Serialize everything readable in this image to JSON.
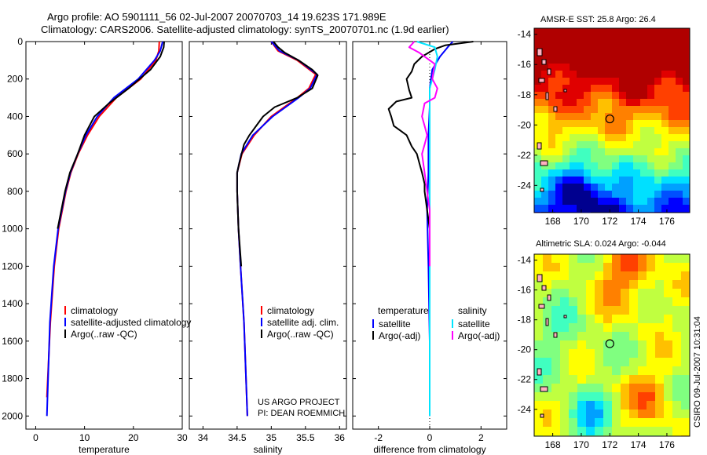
{
  "header": {
    "line1": "Argo profile: AO 5901111_56 02-Jul-2007 20070703_14 19.623S 171.989E",
    "line2": "Climatology: CARS2006. Satellite-adjusted climatology: synTS_20070701.nc (1.9d earlier)"
  },
  "credit": {
    "line1": "US ARGO PROJECT",
    "line2": "PI: DEAN ROEMMICH"
  },
  "stamp": "CSIRO 09-Jul-2007 10:31:04",
  "depth_ticks": [
    "0",
    "200",
    "400",
    "600",
    "800",
    "1000",
    "1200",
    "1400",
    "1600",
    "1800",
    "2000"
  ],
  "colors": {
    "climatology": "#ff0000",
    "satellite": "#0000ff",
    "argo": "#000000",
    "sal_satellite": "#00e5ff",
    "sal_argo": "#ff00ff",
    "argo_dot": "#000000"
  },
  "chart_data": [
    {
      "type": "line",
      "xlabel": "temperature",
      "xlim": [
        -2,
        30
      ],
      "ylim": [
        2070,
        0
      ],
      "xticks": [
        "0",
        "10",
        "20",
        "30"
      ],
      "legend": {
        "position": "lower-middle",
        "entries": [
          "climatology",
          "satellite-adjusted climatology",
          "Argo(..raw -QC)"
        ]
      },
      "series": [
        {
          "name": "climatology",
          "color": "#ff0000",
          "depth": [
            0,
            50,
            100,
            200,
            300,
            400,
            500,
            600,
            700,
            800,
            1000,
            1200,
            1500,
            1900
          ],
          "values": [
            25.3,
            25.2,
            24.6,
            21.5,
            16.5,
            13.0,
            10.6,
            8.7,
            7.2,
            6.2,
            4.7,
            3.8,
            3.0,
            2.3
          ]
        },
        {
          "name": "satellite-adjusted climatology",
          "color": "#0000ff",
          "depth": [
            0,
            50,
            100,
            200,
            300,
            400,
            500,
            600,
            700,
            800,
            1000,
            1200,
            1500,
            2000
          ],
          "values": [
            26.0,
            25.5,
            24.3,
            21.0,
            16.0,
            12.6,
            10.3,
            8.6,
            7.1,
            6.1,
            4.6,
            3.7,
            2.9,
            2.3
          ]
        },
        {
          "name": "Argo(..raw -QC)",
          "color": "#000000",
          "depth": [
            0,
            30,
            80,
            150,
            250,
            330,
            400,
            500,
            600,
            700,
            800,
            1000
          ],
          "values": [
            26.3,
            26.2,
            25.5,
            23.5,
            19.0,
            15.0,
            12.0,
            10.0,
            8.6,
            7.0,
            6.0,
            4.5
          ]
        }
      ]
    },
    {
      "type": "line",
      "xlabel": "salinity",
      "xlim": [
        33.8,
        36.1
      ],
      "ylim": [
        2070,
        0
      ],
      "xticks": [
        "34",
        "34.5",
        "35",
        "35.5",
        "36"
      ],
      "legend": {
        "position": "lower-middle",
        "entries": [
          "climatology",
          "satellite adj. clim.",
          "Argo(..raw -QC)"
        ]
      },
      "series": [
        {
          "name": "climatology",
          "color": "#ff0000",
          "depth": [
            0,
            50,
            100,
            175,
            250,
            300,
            400,
            500,
            600,
            700,
            800,
            1000,
            1200,
            1500,
            2000
          ],
          "values": [
            35.0,
            35.1,
            35.38,
            35.65,
            35.55,
            35.38,
            35.0,
            34.75,
            34.57,
            34.5,
            34.5,
            34.52,
            34.55,
            34.6,
            34.65
          ]
        },
        {
          "name": "satellite adj. clim.",
          "color": "#0000ff",
          "depth": [
            0,
            50,
            100,
            175,
            250,
            300,
            400,
            500,
            600,
            700,
            800,
            1000,
            1200,
            1500,
            2000
          ],
          "values": [
            35.0,
            35.12,
            35.4,
            35.67,
            35.57,
            35.4,
            35.02,
            34.73,
            34.56,
            34.5,
            34.5,
            34.52,
            34.55,
            34.6,
            34.65
          ]
        },
        {
          "name": "Argo(..raw -QC)",
          "color": "#000000",
          "depth": [
            0,
            30,
            60,
            100,
            150,
            180,
            250,
            300,
            350,
            400,
            450,
            500,
            550,
            650,
            700,
            800,
            1000,
            1200
          ],
          "values": [
            35.03,
            35.1,
            35.2,
            35.4,
            35.6,
            35.68,
            35.6,
            35.38,
            35.05,
            34.88,
            34.78,
            34.68,
            34.6,
            34.53,
            34.5,
            34.5,
            34.52,
            34.56
          ]
        }
      ]
    },
    {
      "type": "line",
      "xlabel": "difference from climatology",
      "xlim": [
        -3,
        3
      ],
      "ylim": [
        2070,
        0
      ],
      "xticks": [
        "-2",
        "0",
        "2"
      ],
      "zero_line": "dotted",
      "legend": {
        "position": "lower-middle",
        "groups": [
          "temperature",
          "salinity"
        ],
        "entries": [
          "satellite",
          "Argo(-adj)",
          "satellite",
          "Argo(-adj)"
        ]
      },
      "series": [
        {
          "name": "temperature satellite",
          "color": "#0000ff",
          "depth": [
            0,
            30,
            80,
            150,
            250,
            350,
            500,
            700,
            900,
            1200,
            1600,
            2000
          ],
          "values": [
            0.9,
            0.7,
            0.4,
            0.1,
            0.0,
            0.0,
            -0.05,
            -0.05,
            -0.1,
            -0.05,
            0.0,
            0.0
          ]
        },
        {
          "name": "temperature Argo(-adj)",
          "color": "#000000",
          "depth": [
            0,
            20,
            40,
            80,
            120,
            160,
            200,
            260,
            300,
            320,
            360,
            400,
            450,
            500,
            560,
            600,
            650,
            700,
            760,
            800,
            900,
            1000,
            1060
          ],
          "values": [
            1.7,
            0.6,
            0.2,
            -0.3,
            -0.6,
            -0.7,
            -0.9,
            -0.8,
            -0.7,
            -1.3,
            -1.6,
            -1.5,
            -1.4,
            -0.9,
            -0.7,
            -0.5,
            -0.4,
            -0.3,
            -0.2,
            -0.2,
            -0.1,
            0.0,
            0.0
          ]
        },
        {
          "name": "salinity satellite",
          "color": "#00e5ff",
          "depth": [
            0,
            30,
            80,
            150,
            250,
            400,
            600,
            800,
            1200,
            1600,
            2000
          ],
          "values": [
            -0.5,
            0.2,
            0.3,
            0.2,
            0.0,
            0.0,
            0.0,
            0.0,
            0.0,
            0.0,
            0.0
          ]
        },
        {
          "name": "salinity Argo(-adj)",
          "color": "#ff00ff",
          "depth": [
            0,
            30,
            60,
            120,
            200,
            250,
            300,
            330,
            400,
            450,
            500,
            550,
            600,
            700,
            800,
            900,
            1000,
            1100,
            1200
          ],
          "values": [
            -0.6,
            -0.8,
            -0.4,
            0.2,
            0.1,
            0.3,
            0.2,
            -0.2,
            -0.3,
            -0.2,
            -0.1,
            -0.2,
            -0.3,
            -0.2,
            -0.1,
            0.0,
            0.0,
            0.0,
            0.0
          ]
        }
      ]
    },
    {
      "type": "heatmap",
      "title": "AMSR-E SST: 25.8  Argo: 26.4",
      "xlim": [
        166.7,
        177.6
      ],
      "ylim": [
        -25.8,
        -13.6
      ],
      "xticks": [
        "168",
        "170",
        "172",
        "174",
        "176"
      ],
      "yticks": [
        "-14",
        "-16",
        "-18",
        "-20",
        "-22",
        "-24"
      ],
      "argo_position": [
        172.0,
        -19.6
      ],
      "palette": "jet"
    },
    {
      "type": "heatmap",
      "title": "Altimetric SLA: 0.024  Argo: -0.044",
      "xlim": [
        166.7,
        177.6
      ],
      "ylim": [
        -25.8,
        -13.6
      ],
      "xticks": [
        "168",
        "170",
        "172",
        "174",
        "176"
      ],
      "yticks": [
        "-14",
        "-16",
        "-18",
        "-20",
        "-22",
        "-24"
      ],
      "argo_position": [
        172.0,
        -19.6
      ],
      "palette": "jet"
    }
  ]
}
